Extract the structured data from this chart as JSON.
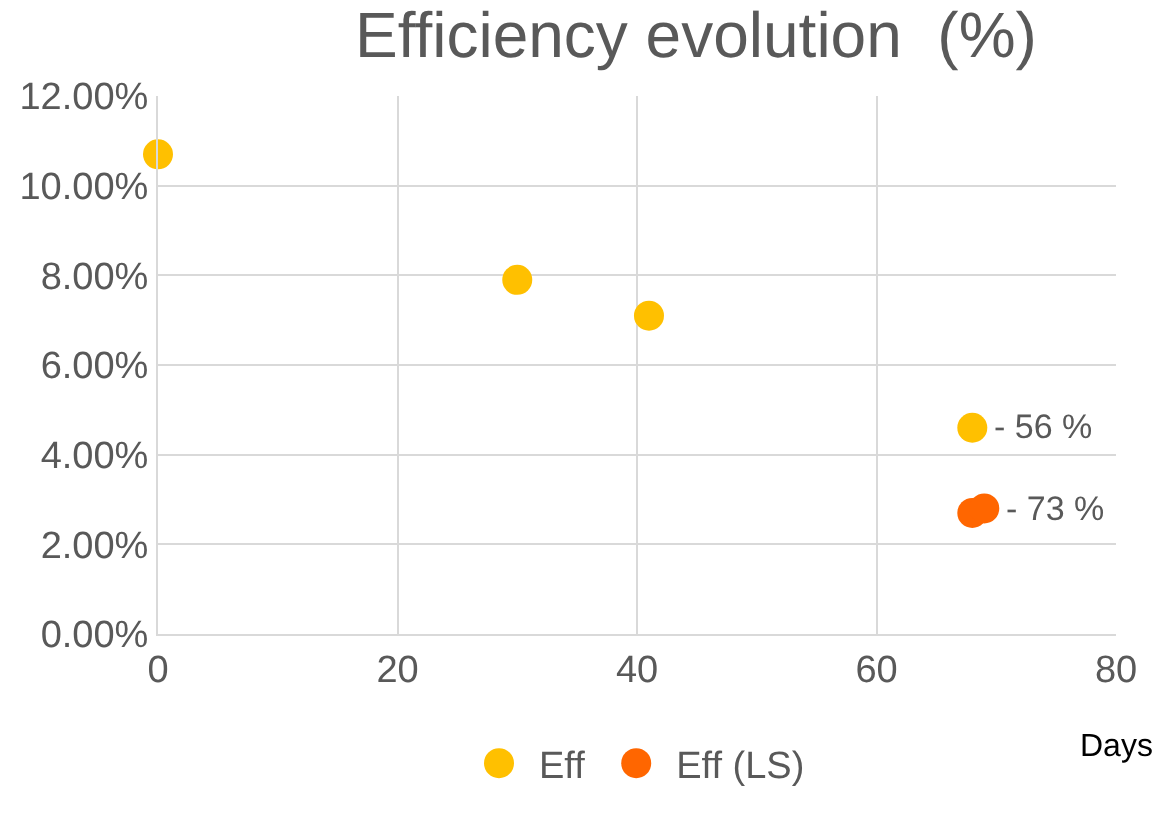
{
  "chart_data": {
    "type": "scatter",
    "title": "Efficiency evolution  (%)",
    "xlabel": "Days",
    "series": [
      {
        "name": "Eff",
        "color": "#ffc000",
        "x": [
          0,
          30,
          41,
          68
        ],
        "values": [
          10.7,
          7.9,
          7.1,
          4.6
        ]
      },
      {
        "name": "Eff (LS)",
        "color": "#ff6600",
        "x": [
          68,
          69
        ],
        "values": [
          2.7,
          2.8
        ]
      }
    ],
    "annotations": [
      {
        "text": "- 56 %",
        "x": 68,
        "y": 4.6
      },
      {
        "text": "- 73 %",
        "x": 69,
        "y": 2.8
      }
    ],
    "xlim": [
      0,
      80
    ],
    "xticks": [
      0,
      20,
      40,
      60,
      80
    ],
    "ylim": [
      0,
      12
    ],
    "yticks": [
      {
        "value": 0,
        "label": "0.00%"
      },
      {
        "value": 2,
        "label": "2.00%"
      },
      {
        "value": 4,
        "label": "4.00%"
      },
      {
        "value": 6,
        "label": "6.00%"
      },
      {
        "value": 8,
        "label": "8.00%"
      },
      {
        "value": 10,
        "label": "10.00%"
      },
      {
        "value": 12,
        "label": "12.00%"
      }
    ],
    "grid": true,
    "legend": "bottom",
    "marker": "circle"
  }
}
